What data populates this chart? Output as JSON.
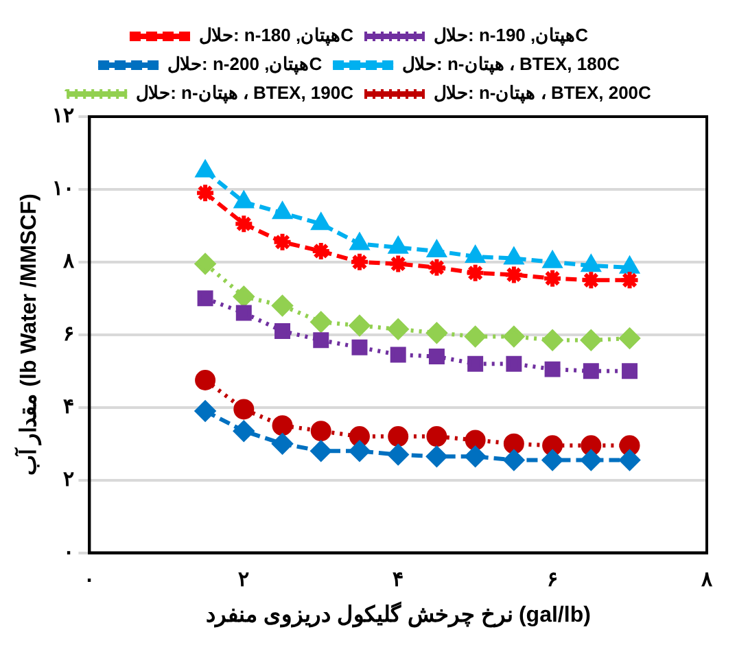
{
  "chart_data": {
    "type": "line",
    "xlabel": "نرخ چرخش گلیکول دریزوی منفرد (gal/lb)",
    "ylabel": "مقدار آب (lb Water /MMSCF)",
    "x": [
      1.5,
      2,
      2.5,
      3,
      3.5,
      4,
      4.5,
      5,
      5.5,
      6,
      6.5,
      7
    ],
    "series": [
      {
        "name": "حلال: n-هپتان, 180C",
        "color": "#ff0000",
        "marker": "cross",
        "line_style": "dashed",
        "values": [
          9.9,
          9.05,
          8.55,
          8.3,
          8.0,
          7.95,
          7.85,
          7.7,
          7.65,
          7.55,
          7.5,
          7.5
        ]
      },
      {
        "name": "حلال: n-هپتان, 190C",
        "color": "#7030a0",
        "marker": "square",
        "line_style": "dotted",
        "values": [
          7.0,
          6.6,
          6.1,
          5.85,
          5.65,
          5.45,
          5.4,
          5.2,
          5.2,
          5.05,
          5.0,
          5.0
        ]
      },
      {
        "name": "حلال: n-هپتان, 200C",
        "color": "#0070c0",
        "marker": "diamond",
        "line_style": "dashed",
        "values": [
          3.9,
          3.35,
          3.0,
          2.8,
          2.8,
          2.7,
          2.65,
          2.65,
          2.55,
          2.55,
          2.55,
          2.55
        ]
      },
      {
        "name": "حلال: n-هپتان ، BTEX, 180C",
        "color": "#00b0f0",
        "marker": "triangle",
        "line_style": "dashed",
        "values": [
          10.5,
          9.65,
          9.35,
          9.05,
          8.5,
          8.4,
          8.3,
          8.15,
          8.1,
          8.0,
          7.9,
          7.85
        ]
      },
      {
        "name": "حلال: n-هپتان ، BTEX, 190C",
        "color": "#92d050",
        "marker": "diamond",
        "line_style": "dotted",
        "values": [
          7.95,
          7.05,
          6.8,
          6.35,
          6.25,
          6.15,
          6.05,
          5.95,
          5.95,
          5.85,
          5.85,
          5.9
        ]
      },
      {
        "name": "حلال: n-هپتان ، BTEX, 200C",
        "color": "#c00000",
        "marker": "circle",
        "line_style": "dotted",
        "values": [
          4.75,
          3.95,
          3.5,
          3.35,
          3.2,
          3.2,
          3.2,
          3.1,
          3.0,
          2.95,
          2.95,
          2.95
        ]
      }
    ],
    "xlim": [
      0,
      8
    ],
    "xticks": [
      {
        "value": 0,
        "label": "۰"
      },
      {
        "value": 2,
        "label": "۲"
      },
      {
        "value": 4,
        "label": "۴"
      },
      {
        "value": 6,
        "label": "۶"
      },
      {
        "value": 8,
        "label": "۸"
      }
    ],
    "ylim": [
      0,
      12
    ],
    "yticks": [
      {
        "value": 0,
        "label": "۰"
      },
      {
        "value": 2,
        "label": "۲"
      },
      {
        "value": 4,
        "label": "۴"
      },
      {
        "value": 6,
        "label": "۶"
      },
      {
        "value": 8,
        "label": "۸"
      },
      {
        "value": 10,
        "label": "۱۰"
      },
      {
        "value": 12,
        "label": "۱۲"
      }
    ],
    "grid": "y",
    "legend": "top"
  }
}
